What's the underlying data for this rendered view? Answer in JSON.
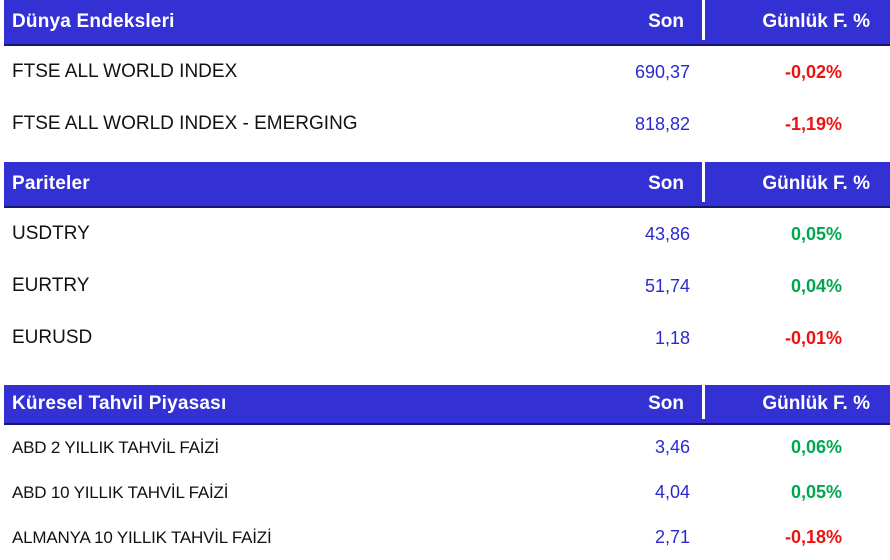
{
  "colors": {
    "header_bg": "#3431d4",
    "header_text": "#ffffff",
    "header_border": "#191670",
    "separator": "#ffffff",
    "name_text": "#111111",
    "value_blue": "#2a2ad0",
    "positive": "#00a650",
    "negative": "#ee1111"
  },
  "columns": {
    "last_label": "Son",
    "daily_change_label": "Günlük F. %"
  },
  "sections": [
    {
      "title": "Dünya Endeksleri",
      "rows": [
        {
          "name": "FTSE ALL WORLD INDEX",
          "last": "690,37",
          "change": "-0,02%",
          "direction": "down"
        },
        {
          "name": "FTSE ALL WORLD INDEX - EMERGING",
          "last": "818,82",
          "change": "-1,19%",
          "direction": "down"
        }
      ]
    },
    {
      "title": "Pariteler",
      "rows": [
        {
          "name": "USDTRY",
          "last": "43,86",
          "change": "0,05%",
          "direction": "up"
        },
        {
          "name": "EURTRY",
          "last": "51,74",
          "change": "0,04%",
          "direction": "up"
        },
        {
          "name": "EURUSD",
          "last": "1,18",
          "change": "-0,01%",
          "direction": "down"
        }
      ]
    },
    {
      "title": "Küresel Tahvil Piyasası",
      "rows": [
        {
          "name": "ABD 2 YILLIK TAHVİL FAİZİ",
          "last": "3,46",
          "change": "0,06%",
          "direction": "up"
        },
        {
          "name": "ABD 10 YILLIK TAHVİL FAİZİ",
          "last": "4,04",
          "change": "0,05%",
          "direction": "up"
        },
        {
          "name": "ALMANYA 10 YILLIK TAHVİL FAİZİ",
          "last": "2,71",
          "change": "-0,18%",
          "direction": "down"
        }
      ]
    }
  ]
}
